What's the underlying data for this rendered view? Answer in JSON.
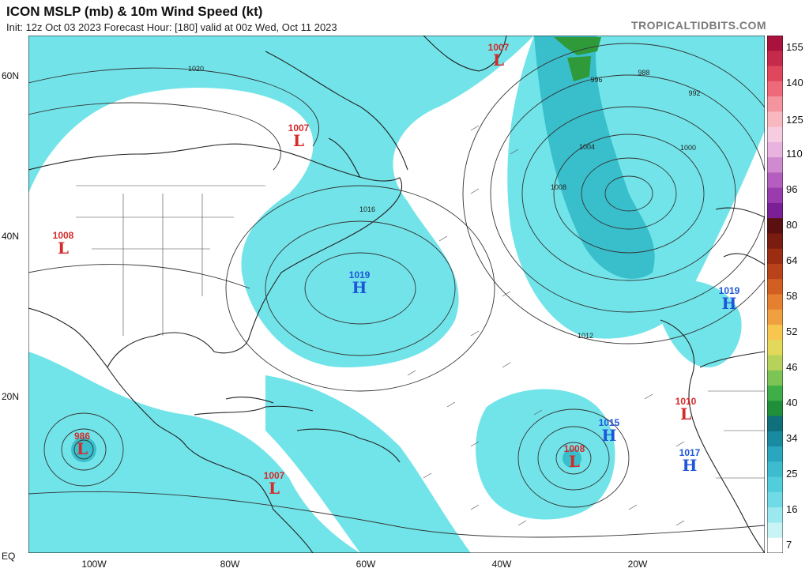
{
  "header": {
    "title": "ICON MSLP (mb) & 10m Wind Speed (kt)",
    "subtitle": "Init: 12z Oct 03 2023   Forecast Hour: [180]   valid at 00z Wed, Oct 11 2023",
    "brand": "TROPICALTIDBITS.COM"
  },
  "axes": {
    "lat_labels": [
      "60N",
      "40N",
      "20N",
      "EQ"
    ],
    "lon_labels": [
      "100W",
      "80W",
      "60W",
      "40W",
      "20W"
    ]
  },
  "colorbar": {
    "labels": [
      "155",
      "140",
      "125",
      "110",
      "96",
      "80",
      "64",
      "58",
      "52",
      "46",
      "40",
      "34",
      "25",
      "16",
      "7"
    ]
  },
  "pressure_systems": [
    {
      "type": "L",
      "value": "1007"
    },
    {
      "type": "L",
      "value": "1007"
    },
    {
      "type": "L",
      "value": "1008"
    },
    {
      "type": "H",
      "value": "1019"
    },
    {
      "type": "H",
      "value": "1019"
    },
    {
      "type": "L",
      "value": "986"
    },
    {
      "type": "L",
      "value": "1007"
    },
    {
      "type": "L",
      "value": "1008"
    },
    {
      "type": "H",
      "value": "1015"
    },
    {
      "type": "L",
      "value": "1010"
    },
    {
      "type": "H",
      "value": "1017"
    }
  ],
  "isobar_labels": [
    "1020",
    "1016",
    "1012",
    "1008",
    "1004",
    "1000",
    "996",
    "992",
    "988"
  ],
  "colors": {
    "wind_cyan": "#5fe0e6",
    "wind_teal": "#2fb8c6",
    "low_red": "#d42a2a",
    "high_blue": "#1d56d8",
    "land_line": "#222222"
  }
}
